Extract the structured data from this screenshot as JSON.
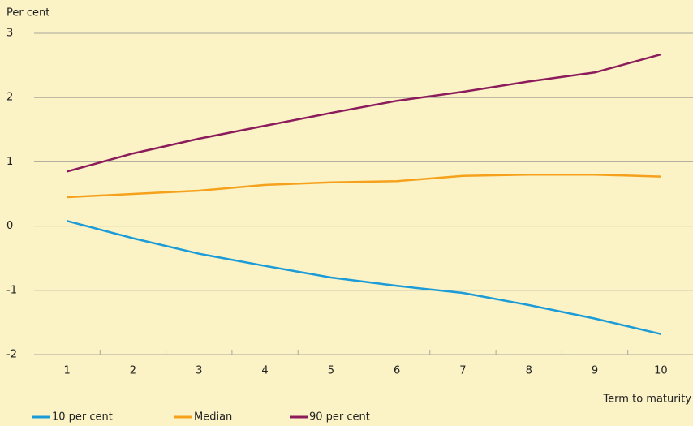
{
  "chart_data": {
    "type": "line",
    "y_label": "Per cent",
    "x_label": "Term to maturity",
    "categories": [
      "1",
      "2",
      "3",
      "4",
      "5",
      "6",
      "7",
      "8",
      "9",
      "10"
    ],
    "series": [
      {
        "name": "10 per cent",
        "color": "#1b9bd7",
        "values": [
          0.08,
          -0.19,
          -0.43,
          -0.62,
          -0.8,
          -0.93,
          -1.04,
          -1.23,
          -1.44,
          -1.68
        ]
      },
      {
        "name": "Median",
        "color": "#f5a11c",
        "values": [
          0.45,
          0.5,
          0.55,
          0.64,
          0.68,
          0.7,
          0.78,
          0.8,
          0.8,
          0.77
        ]
      },
      {
        "name": "90 per cent",
        "color": "#8c1b5c",
        "values": [
          0.85,
          1.13,
          1.36,
          1.56,
          1.76,
          1.95,
          2.09,
          2.25,
          2.39,
          2.67
        ]
      }
    ],
    "ylim": [
      -2,
      3
    ],
    "yticks": [
      -2,
      -1,
      0,
      1,
      2,
      3
    ],
    "grid": true
  }
}
